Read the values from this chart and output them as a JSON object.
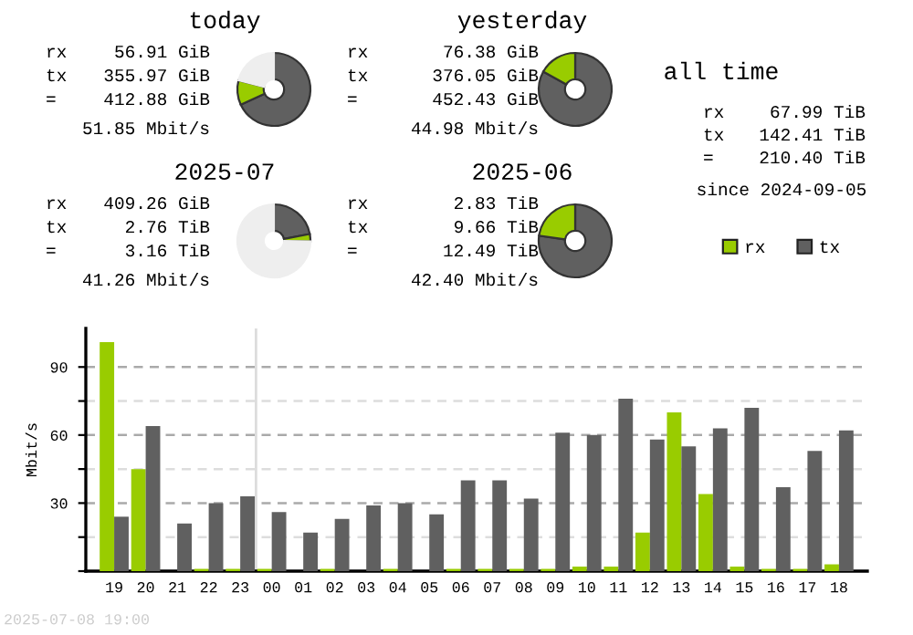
{
  "chart_data": [
    {
      "type": "donut",
      "title": "today",
      "categories": [
        null,
        null,
        null
      ],
      "values": [
        68.1,
        10.9,
        21.0
      ],
      "colors": [
        "#606060",
        "#99cc00",
        "#eeeeee"
      ],
      "annotations": [
        "rx",
        "56.91 GiB",
        "tx",
        "355.97 GiB",
        "=",
        "412.88 GiB",
        "51.85 Mbit/s"
      ]
    },
    {
      "type": "donut",
      "title": "yesterday",
      "categories": [
        null,
        null
      ],
      "values": [
        83.1,
        16.9
      ],
      "colors": [
        "#606060",
        "#99cc00"
      ],
      "annotations": [
        "rx",
        "76.38 GiB",
        "tx",
        "376.05 GiB",
        "=",
        "452.43 GiB",
        "44.98 Mbit/s"
      ]
    },
    {
      "type": "donut",
      "title": "2025-07",
      "categories": [
        null,
        null,
        null
      ],
      "values": [
        22.0,
        3.2,
        74.8
      ],
      "colors": [
        "#606060",
        "#99cc00",
        "#eeeeee"
      ],
      "annotations": [
        "rx",
        "409.26 GiB",
        "tx",
        "2.76 TiB",
        "=",
        "3.16 TiB",
        "41.26 Mbit/s"
      ]
    },
    {
      "type": "donut",
      "title": "2025-06",
      "categories": [
        null,
        null
      ],
      "values": [
        77.3,
        22.7
      ],
      "colors": [
        "#606060",
        "#99cc00"
      ],
      "annotations": [
        "rx",
        "2.83 TiB",
        "tx",
        "9.66 TiB",
        "=",
        "12.49 TiB",
        "42.40 Mbit/s"
      ]
    },
    {
      "type": "other",
      "title": "all time",
      "annotations": [
        "rx",
        "67.99 TiB",
        "tx",
        "142.41 TiB",
        "=",
        "210.40 TiB",
        "since 2024-09-05"
      ]
    },
    {
      "type": "bar",
      "ylabel": "Mbit/s",
      "legend": "top right",
      "grid": "y",
      "categories": [
        "19",
        "20",
        "21",
        "22",
        "23",
        "00",
        "01",
        "02",
        "03",
        "04",
        "05",
        "06",
        "07",
        "08",
        "09",
        "10",
        "11",
        "12",
        "13",
        "14",
        "15",
        "16",
        "17",
        "18"
      ],
      "series": [
        {
          "name": "rx",
          "color": "#99cc00",
          "values": [
            101,
            45,
            0,
            1,
            1,
            1,
            0,
            1,
            0,
            1,
            0,
            1,
            1,
            1,
            1,
            2,
            2,
            17,
            70,
            34,
            2,
            1,
            1,
            3
          ]
        },
        {
          "name": "tx",
          "color": "#606060",
          "values": [
            24,
            64,
            21,
            30,
            33,
            26,
            17,
            23,
            29,
            30,
            25,
            40,
            40,
            32,
            61,
            60,
            76,
            58,
            55,
            63,
            72,
            37,
            53,
            62
          ]
        }
      ],
      "ylim": [
        0,
        107
      ],
      "yticks": [
        {
          "value": 0,
          "label": null
        },
        {
          "value": 15,
          "label": null
        },
        30,
        {
          "value": 45,
          "label": null
        },
        60,
        {
          "value": 75,
          "label": null
        },
        90
      ],
      "ref_lines": [
        {
          "axis": "x",
          "value": "00",
          "color": "#dddddd"
        }
      ],
      "annotations": [
        "2025-07-08 19:00"
      ]
    }
  ]
}
